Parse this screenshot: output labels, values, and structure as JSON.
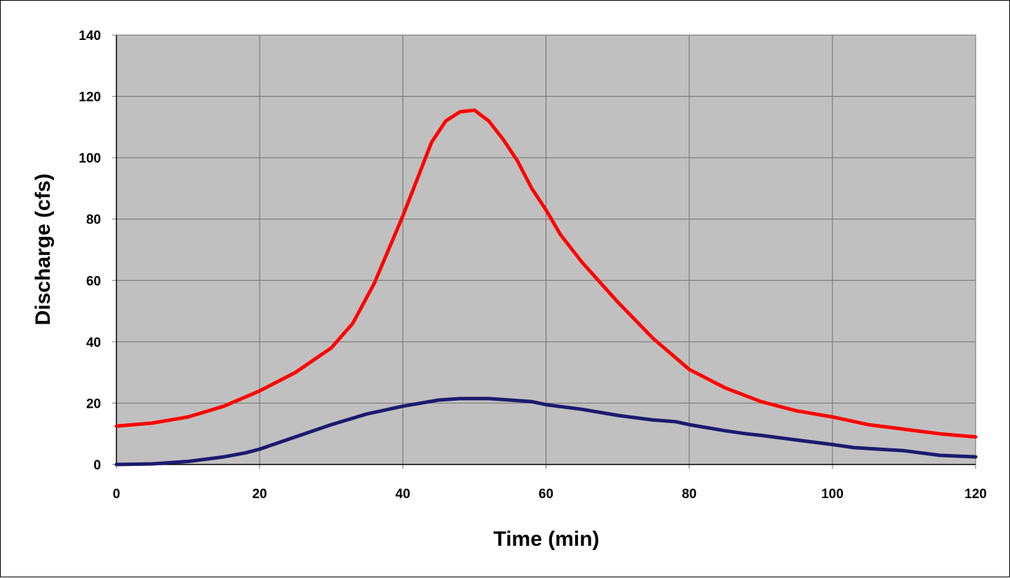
{
  "chart_data": {
    "type": "line",
    "title": "",
    "xlabel": "Time (min)",
    "ylabel": "Discharge (cfs)",
    "xlim": [
      0,
      120
    ],
    "ylim": [
      0,
      140
    ],
    "xticks": [
      0,
      20,
      40,
      60,
      80,
      100,
      120
    ],
    "yticks": [
      0,
      20,
      40,
      60,
      80,
      100,
      120,
      140
    ],
    "grid": true,
    "legend": "none",
    "series": [
      {
        "name": "red",
        "color": "#ff0000",
        "x": [
          0,
          5,
          10,
          15,
          20,
          25,
          30,
          33,
          36,
          38,
          40,
          42,
          44,
          46,
          48,
          50,
          52,
          54,
          56,
          58,
          60,
          62,
          65,
          70,
          75,
          80,
          85,
          90,
          95,
          100,
          105,
          110,
          115,
          120
        ],
        "y": [
          12.5,
          13.5,
          15.5,
          19,
          24,
          30,
          38,
          46,
          59,
          70,
          81,
          93,
          105,
          112,
          115,
          115.5,
          112,
          106,
          99,
          90,
          83,
          75,
          66,
          53,
          41,
          31,
          25,
          20.5,
          17.5,
          15.5,
          13,
          11.5,
          10,
          9
        ]
      },
      {
        "name": "blue",
        "color": "#1c1a6e",
        "x": [
          0,
          5,
          10,
          15,
          18,
          20,
          25,
          30,
          35,
          40,
          45,
          48,
          52,
          55,
          58,
          60,
          65,
          70,
          75,
          78,
          80,
          85,
          88,
          90,
          95,
          100,
          103,
          110,
          115,
          120
        ],
        "y": [
          0,
          0.2,
          1,
          2.5,
          3.8,
          5,
          9,
          13,
          16.5,
          19,
          21,
          21.5,
          21.5,
          21,
          20.5,
          19.5,
          18,
          16,
          14.5,
          14,
          13,
          11,
          10,
          9.5,
          8,
          6.5,
          5.5,
          4.5,
          3,
          2.5
        ]
      }
    ]
  }
}
